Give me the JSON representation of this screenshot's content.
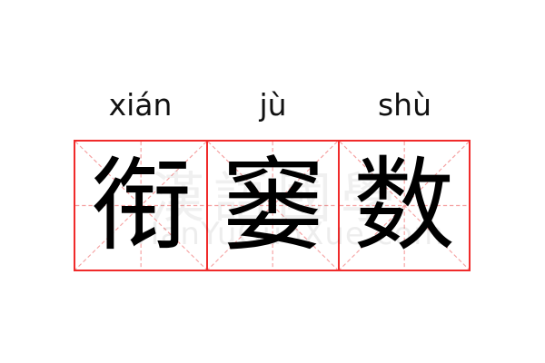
{
  "entries": [
    {
      "pinyin": "xián",
      "char": "衔"
    },
    {
      "pinyin": "jù",
      "char": "窭"
    },
    {
      "pinyin": "shù",
      "char": "数"
    }
  ],
  "watermark": {
    "cn": "漢語國學",
    "en": "HanYuGuoXue.com"
  },
  "colors": {
    "border": "#f02a2a",
    "guide": "#f5a0a0"
  }
}
